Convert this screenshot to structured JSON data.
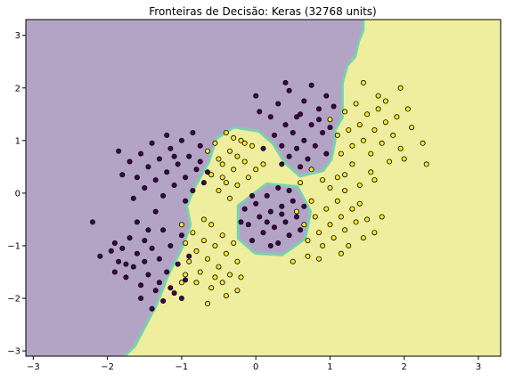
{
  "chart_data": {
    "type": "scatter",
    "title": "Fronteiras de Decisão: Keras (32768 units)",
    "xlabel": "",
    "ylabel": "",
    "xlim": [
      -3.1,
      3.3
    ],
    "ylim": [
      -3.1,
      3.3
    ],
    "xticks": [
      -3,
      -2,
      -1,
      0,
      1,
      2,
      3
    ],
    "yticks": [
      -3,
      -2,
      -1,
      0,
      1,
      2,
      3
    ],
    "xtick_labels": [
      "−3",
      "−2",
      "−1",
      "0",
      "1",
      "2",
      "3"
    ],
    "ytick_labels": [
      "−3",
      "−2",
      "−1",
      "0",
      "1",
      "2",
      "3"
    ],
    "grid": false,
    "legend": "none",
    "colors": {
      "class_0_region": "#b3a4c6",
      "class_1_region": "#eeee9e",
      "class_0_point": "#440154",
      "class_1_point": "#fde725",
      "boundary_band": "#5ec8b4",
      "point_edge": "#000000"
    },
    "decision_regions": {
      "class_0_region_polygon": [
        [
          -3.1,
          3.3
        ],
        [
          1.43,
          3.3
        ],
        [
          1.43,
          3.1
        ],
        [
          1.37,
          2.9
        ],
        [
          1.32,
          2.6
        ],
        [
          1.22,
          2.45
        ],
        [
          1.15,
          2.1
        ],
        [
          1.15,
          1.45
        ],
        [
          1.05,
          1.2
        ],
        [
          1.05,
          1.0
        ],
        [
          1.0,
          0.65
        ],
        [
          0.9,
          0.45
        ],
        [
          0.6,
          0.35
        ],
        [
          0.4,
          0.6
        ],
        [
          0.25,
          0.95
        ],
        [
          0.05,
          1.2
        ],
        [
          -0.3,
          1.28
        ],
        [
          -0.55,
          1.05
        ],
        [
          -0.65,
          0.6
        ],
        [
          -0.85,
          0.1
        ],
        [
          -0.95,
          -0.25
        ],
        [
          -0.9,
          -0.6
        ],
        [
          -1.0,
          -1.0
        ],
        [
          -1.2,
          -1.55
        ],
        [
          -1.35,
          -2.1
        ],
        [
          -1.5,
          -2.5
        ],
        [
          -1.65,
          -2.9
        ],
        [
          -1.8,
          -3.1
        ],
        [
          -3.1,
          -3.1
        ]
      ],
      "class_0_island_polygon": [
        [
          -0.22,
          -0.25
        ],
        [
          0.15,
          0.15
        ],
        [
          0.55,
          0.1
        ],
        [
          0.72,
          -0.35
        ],
        [
          0.65,
          -0.85
        ],
        [
          0.35,
          -1.15
        ],
        [
          0.0,
          -1.12
        ],
        [
          -0.22,
          -0.85
        ]
      ]
    },
    "series": [
      {
        "class": 0,
        "points": [
          [
            -2.1,
            -1.2
          ],
          [
            -1.95,
            -1.1
          ],
          [
            -1.9,
            -0.95
          ],
          [
            -1.85,
            -1.3
          ],
          [
            -1.8,
            -1.05
          ],
          [
            -1.75,
            -1.6
          ],
          [
            -1.7,
            -0.85
          ],
          [
            -1.65,
            -1.4
          ],
          [
            -1.6,
            -1.15
          ],
          [
            -1.55,
            -1.75
          ],
          [
            -1.5,
            -0.9
          ],
          [
            -1.5,
            -1.3
          ],
          [
            -1.45,
            -1.55
          ],
          [
            -1.4,
            -1.05
          ],
          [
            -1.35,
            -1.85
          ],
          [
            -1.3,
            -1.25
          ],
          [
            -1.25,
            -0.7
          ],
          [
            -1.2,
            -1.5
          ],
          [
            -1.15,
            -1.0
          ],
          [
            -1.1,
            -1.9
          ],
          [
            -1.05,
            -1.35
          ],
          [
            -1.0,
            -0.8
          ],
          [
            -0.95,
            -1.65
          ],
          [
            -0.9,
            -1.2
          ],
          [
            -1.6,
            -0.55
          ],
          [
            -1.45,
            -0.7
          ],
          [
            -1.3,
            -1.7
          ],
          [
            -1.75,
            -1.35
          ],
          [
            -1.25,
            -2.05
          ],
          [
            -2.2,
            -0.55
          ],
          [
            -1.4,
            -2.2
          ],
          [
            -1.15,
            -1.8
          ],
          [
            -1.0,
            -2.0
          ],
          [
            -1.9,
            -1.5
          ],
          [
            -1.55,
            -2.0
          ],
          [
            -1.7,
            0.6
          ],
          [
            -1.6,
            0.3
          ],
          [
            -1.55,
            0.75
          ],
          [
            -1.5,
            0.1
          ],
          [
            -1.45,
            0.5
          ],
          [
            -1.4,
            0.95
          ],
          [
            -1.35,
            0.25
          ],
          [
            -1.3,
            0.65
          ],
          [
            -1.25,
            -0.05
          ],
          [
            -1.2,
            0.4
          ],
          [
            -1.15,
            0.85
          ],
          [
            -1.1,
            0.15
          ],
          [
            -1.05,
            0.55
          ],
          [
            -1.0,
            1.0
          ],
          [
            -0.95,
            0.3
          ],
          [
            -0.9,
            0.7
          ],
          [
            -0.85,
            0.05
          ],
          [
            -0.8,
            0.45
          ],
          [
            -0.75,
            0.9
          ],
          [
            -0.7,
            0.2
          ],
          [
            -1.8,
            0.35
          ],
          [
            -1.65,
            -0.1
          ],
          [
            -1.2,
            1.1
          ],
          [
            -0.85,
            1.15
          ],
          [
            -0.75,
            0.6
          ],
          [
            -1.85,
            0.8
          ],
          [
            -1.35,
            -0.35
          ],
          [
            -0.95,
            -0.15
          ],
          [
            -1.1,
            0.7
          ],
          [
            -0.65,
            0.4
          ],
          [
            0.25,
            1.1
          ],
          [
            0.35,
            0.9
          ],
          [
            0.4,
            1.3
          ],
          [
            0.45,
            0.7
          ],
          [
            0.5,
            1.15
          ],
          [
            0.55,
            0.85
          ],
          [
            0.6,
            1.5
          ],
          [
            0.65,
            1.0
          ],
          [
            0.7,
            0.65
          ],
          [
            0.75,
            1.3
          ],
          [
            0.8,
            0.9
          ],
          [
            0.85,
            1.6
          ],
          [
            0.9,
            1.15
          ],
          [
            0.95,
            0.75
          ],
          [
            0.3,
            1.7
          ],
          [
            0.45,
            1.95
          ],
          [
            0.55,
            1.45
          ],
          [
            0.65,
            1.75
          ],
          [
            0.75,
            2.05
          ],
          [
            0.85,
            1.4
          ],
          [
            0.95,
            1.85
          ],
          [
            0.2,
            1.45
          ],
          [
            1.0,
            1.25
          ],
          [
            0.35,
            0.55
          ],
          [
            0.6,
            0.5
          ],
          [
            0.1,
            0.85
          ],
          [
            0.05,
            1.55
          ],
          [
            0.4,
            2.1
          ],
          [
            0.0,
            1.85
          ],
          [
            1.05,
            1.65
          ],
          [
            -0.15,
            -0.3
          ],
          [
            -0.1,
            -0.6
          ],
          [
            -0.05,
            -0.9
          ],
          [
            0.0,
            -0.2
          ],
          [
            0.05,
            -0.45
          ],
          [
            0.1,
            -0.75
          ],
          [
            0.15,
            -0.05
          ],
          [
            0.2,
            -0.35
          ],
          [
            0.25,
            -0.65
          ],
          [
            0.3,
            -0.95
          ],
          [
            0.35,
            -0.25
          ],
          [
            0.4,
            -0.55
          ],
          [
            0.45,
            -0.8
          ],
          [
            0.5,
            -0.15
          ],
          [
            0.55,
            -0.45
          ],
          [
            0.6,
            -0.7
          ],
          [
            -0.2,
            -0.55
          ],
          [
            0.2,
            -1.0
          ],
          [
            0.45,
            0.05
          ],
          [
            0.3,
            0.1
          ],
          [
            -0.05,
            -0.05
          ],
          [
            0.65,
            -0.25
          ],
          [
            0.15,
            -0.55
          ],
          [
            0.35,
            -0.4
          ]
        ]
      },
      {
        "class": 1,
        "points": [
          [
            -0.55,
            0.95
          ],
          [
            -0.5,
            0.65
          ],
          [
            -0.45,
            0.3
          ],
          [
            -0.4,
            1.15
          ],
          [
            -0.35,
            0.8
          ],
          [
            -0.3,
            0.45
          ],
          [
            -0.25,
            0.15
          ],
          [
            -0.2,
            1.0
          ],
          [
            -0.15,
            0.6
          ],
          [
            -0.1,
            0.3
          ],
          [
            -0.05,
            0.9
          ],
          [
            0.0,
            0.45
          ],
          [
            -0.6,
            0.35
          ],
          [
            -0.5,
            0.05
          ],
          [
            -0.35,
            -0.1
          ],
          [
            -0.25,
            0.7
          ],
          [
            -0.15,
            0.95
          ],
          [
            -0.45,
            0.55
          ],
          [
            -0.3,
            1.05
          ],
          [
            0.1,
            0.55
          ],
          [
            -0.65,
            0.8
          ],
          [
            -0.4,
            0.2
          ],
          [
            -1.0,
            -0.6
          ],
          [
            -0.95,
            -0.95
          ],
          [
            -0.9,
            -1.3
          ],
          [
            -0.85,
            -0.75
          ],
          [
            -0.8,
            -1.1
          ],
          [
            -0.75,
            -1.5
          ],
          [
            -0.7,
            -0.9
          ],
          [
            -0.65,
            -1.25
          ],
          [
            -0.6,
            -0.6
          ],
          [
            -0.55,
            -1.0
          ],
          [
            -0.5,
            -1.4
          ],
          [
            -0.45,
            -0.8
          ],
          [
            -0.4,
            -1.15
          ],
          [
            -0.35,
            -1.55
          ],
          [
            -0.3,
            -0.95
          ],
          [
            -0.25,
            -1.3
          ],
          [
            -0.2,
            -1.6
          ],
          [
            -0.8,
            -1.7
          ],
          [
            -0.6,
            -1.8
          ],
          [
            -0.4,
            -1.95
          ],
          [
            -0.25,
            -1.85
          ],
          [
            -0.65,
            -2.1
          ],
          [
            -0.95,
            -1.55
          ],
          [
            -0.55,
            -1.6
          ],
          [
            -1.0,
            -1.7
          ],
          [
            -0.7,
            -0.5
          ],
          [
            -0.45,
            -1.7
          ],
          [
            0.55,
            -0.35
          ],
          [
            0.65,
            -0.6
          ],
          [
            0.7,
            -0.9
          ],
          [
            0.75,
            -0.15
          ],
          [
            0.8,
            -0.45
          ],
          [
            0.85,
            -0.75
          ],
          [
            0.9,
            -1.0
          ],
          [
            0.95,
            -0.3
          ],
          [
            1.0,
            -0.6
          ],
          [
            1.05,
            -0.85
          ],
          [
            1.1,
            -0.15
          ],
          [
            1.15,
            -0.45
          ],
          [
            1.2,
            -0.7
          ],
          [
            1.25,
            -1.0
          ],
          [
            1.3,
            -0.3
          ],
          [
            1.0,
            0.1
          ],
          [
            1.1,
            0.3
          ],
          [
            0.9,
            0.25
          ],
          [
            1.2,
            0.05
          ],
          [
            0.7,
            -1.2
          ],
          [
            0.85,
            -1.25
          ],
          [
            1.15,
            -1.15
          ],
          [
            1.35,
            -0.55
          ],
          [
            1.45,
            -0.85
          ],
          [
            1.4,
            -0.2
          ],
          [
            1.5,
            -0.5
          ],
          [
            1.6,
            -0.75
          ],
          [
            1.7,
            -0.45
          ],
          [
            0.5,
            -1.3
          ],
          [
            0.6,
            0.2
          ],
          [
            0.75,
            0.45
          ],
          [
            1.0,
            1.4
          ],
          [
            1.1,
            1.1
          ],
          [
            1.15,
            0.75
          ],
          [
            1.2,
            1.55
          ],
          [
            1.25,
            1.2
          ],
          [
            1.3,
            0.9
          ],
          [
            1.35,
            1.7
          ],
          [
            1.4,
            1.3
          ],
          [
            1.45,
            1.0
          ],
          [
            1.5,
            1.5
          ],
          [
            1.55,
            0.75
          ],
          [
            1.6,
            1.2
          ],
          [
            1.65,
            1.6
          ],
          [
            1.7,
            0.95
          ],
          [
            1.75,
            1.35
          ],
          [
            1.8,
            0.6
          ],
          [
            1.85,
            1.1
          ],
          [
            1.9,
            1.45
          ],
          [
            1.95,
            0.85
          ],
          [
            2.05,
            1.6
          ],
          [
            2.1,
            1.25
          ],
          [
            1.3,
            0.55
          ],
          [
            1.55,
            0.4
          ],
          [
            1.45,
            2.1
          ],
          [
            1.65,
            1.85
          ],
          [
            2.25,
            0.95
          ],
          [
            1.6,
            0.25
          ],
          [
            1.95,
            2.0
          ],
          [
            1.4,
            0.15
          ],
          [
            2.0,
            0.65
          ],
          [
            2.3,
            0.55
          ],
          [
            1.75,
            1.75
          ],
          [
            1.2,
            0.35
          ]
        ]
      }
    ]
  }
}
